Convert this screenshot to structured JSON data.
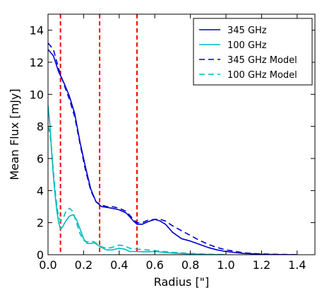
{
  "chart_data": {
    "type": "line",
    "title": "",
    "xlabel": "Radius [\"]",
    "ylabel": "Mean Flux [mJy]",
    "xlim": [
      0.0,
      1.5
    ],
    "ylim": [
      0,
      15
    ],
    "xticks": [
      0.0,
      0.2,
      0.4,
      0.6,
      0.8,
      1.0,
      1.2,
      1.4
    ],
    "xtick_labels": [
      "0.0",
      "0.2",
      "0.4",
      "0.6",
      "0.8",
      "1.0",
      "1.2",
      "1.4"
    ],
    "yticks": [
      0,
      2,
      4,
      6,
      8,
      10,
      12,
      14
    ],
    "ytick_labels": [
      "0",
      "2",
      "4",
      "6",
      "8",
      "10",
      "12",
      "14"
    ],
    "grid": false,
    "legend_position": "top-right",
    "vlines": [
      {
        "x": 0.07,
        "color": "#ff0000",
        "style": "dashed"
      },
      {
        "x": 0.29,
        "color": "#ff0000",
        "style": "dashed"
      },
      {
        "x": 0.5,
        "color": "#ff0000",
        "style": "dashed"
      }
    ],
    "series": [
      {
        "name": "345 GHz",
        "color": "#0000cc",
        "style": "solid",
        "x": [
          0.0,
          0.03,
          0.06,
          0.09,
          0.12,
          0.15,
          0.18,
          0.21,
          0.24,
          0.27,
          0.3,
          0.33,
          0.36,
          0.4,
          0.44,
          0.48,
          0.5,
          0.53,
          0.56,
          0.6,
          0.63,
          0.66,
          0.7,
          0.75,
          0.8,
          0.85,
          0.9,
          0.95,
          1.0,
          1.1,
          1.2,
          1.3,
          1.4
        ],
        "y": [
          12.8,
          12.4,
          11.4,
          10.7,
          9.9,
          8.8,
          7.0,
          5.5,
          4.1,
          3.3,
          3.0,
          2.95,
          2.9,
          2.8,
          2.6,
          2.1,
          1.9,
          1.9,
          2.05,
          2.2,
          2.1,
          1.9,
          1.4,
          1.0,
          0.85,
          0.65,
          0.45,
          0.3,
          0.2,
          0.08,
          0.03,
          0.01,
          0.0
        ]
      },
      {
        "name": "100 GHz",
        "color": "#00bbbb",
        "style": "solid",
        "x": [
          0.0,
          0.01,
          0.02,
          0.03,
          0.04,
          0.05,
          0.06,
          0.07,
          0.08,
          0.09,
          0.1,
          0.12,
          0.14,
          0.16,
          0.18,
          0.2,
          0.22,
          0.24,
          0.26,
          0.28,
          0.3,
          0.33,
          0.36,
          0.4,
          0.43,
          0.46,
          0.5,
          0.55,
          0.6,
          0.65,
          0.7,
          0.8,
          0.9,
          1.0
        ],
        "y": [
          9.3,
          8.2,
          6.5,
          4.9,
          3.7,
          2.7,
          2.0,
          1.6,
          1.7,
          1.9,
          2.1,
          2.4,
          2.5,
          2.2,
          1.6,
          1.0,
          0.7,
          0.7,
          0.75,
          0.6,
          0.45,
          0.3,
          0.3,
          0.4,
          0.35,
          0.2,
          0.2,
          0.18,
          0.2,
          0.15,
          0.1,
          0.05,
          0.02,
          0.0
        ]
      },
      {
        "name": "345 GHz Model",
        "color": "#0000cc",
        "style": "dashed",
        "x": [
          0.0,
          0.03,
          0.06,
          0.09,
          0.12,
          0.15,
          0.18,
          0.21,
          0.24,
          0.27,
          0.3,
          0.33,
          0.36,
          0.4,
          0.44,
          0.48,
          0.5,
          0.53,
          0.56,
          0.6,
          0.63,
          0.66,
          0.7,
          0.75,
          0.8,
          0.85,
          0.9,
          0.95,
          1.0,
          1.1,
          1.2,
          1.3,
          1.4
        ],
        "y": [
          13.2,
          12.8,
          11.6,
          10.6,
          9.7,
          8.6,
          6.9,
          5.3,
          4.0,
          3.3,
          3.1,
          3.0,
          3.0,
          2.9,
          2.7,
          2.2,
          2.0,
          2.0,
          2.15,
          2.2,
          2.2,
          2.1,
          1.8,
          1.5,
          1.2,
          0.9,
          0.65,
          0.45,
          0.3,
          0.12,
          0.05,
          0.02,
          0.0
        ]
      },
      {
        "name": "100 GHz Model",
        "color": "#00bbbb",
        "style": "dashed",
        "x": [
          0.0,
          0.01,
          0.02,
          0.03,
          0.04,
          0.05,
          0.06,
          0.07,
          0.08,
          0.09,
          0.1,
          0.12,
          0.14,
          0.16,
          0.18,
          0.2,
          0.22,
          0.24,
          0.26,
          0.28,
          0.3,
          0.33,
          0.36,
          0.4,
          0.43,
          0.46,
          0.5,
          0.55,
          0.6,
          0.65,
          0.7,
          0.8,
          0.9,
          1.0
        ],
        "y": [
          8.0,
          7.6,
          6.6,
          5.2,
          4.0,
          3.0,
          2.4,
          2.1,
          2.2,
          2.4,
          2.7,
          2.9,
          2.7,
          2.0,
          1.3,
          0.9,
          0.8,
          0.85,
          0.8,
          0.65,
          0.5,
          0.4,
          0.45,
          0.6,
          0.55,
          0.4,
          0.35,
          0.3,
          0.25,
          0.2,
          0.15,
          0.08,
          0.03,
          0.01
        ]
      }
    ]
  }
}
